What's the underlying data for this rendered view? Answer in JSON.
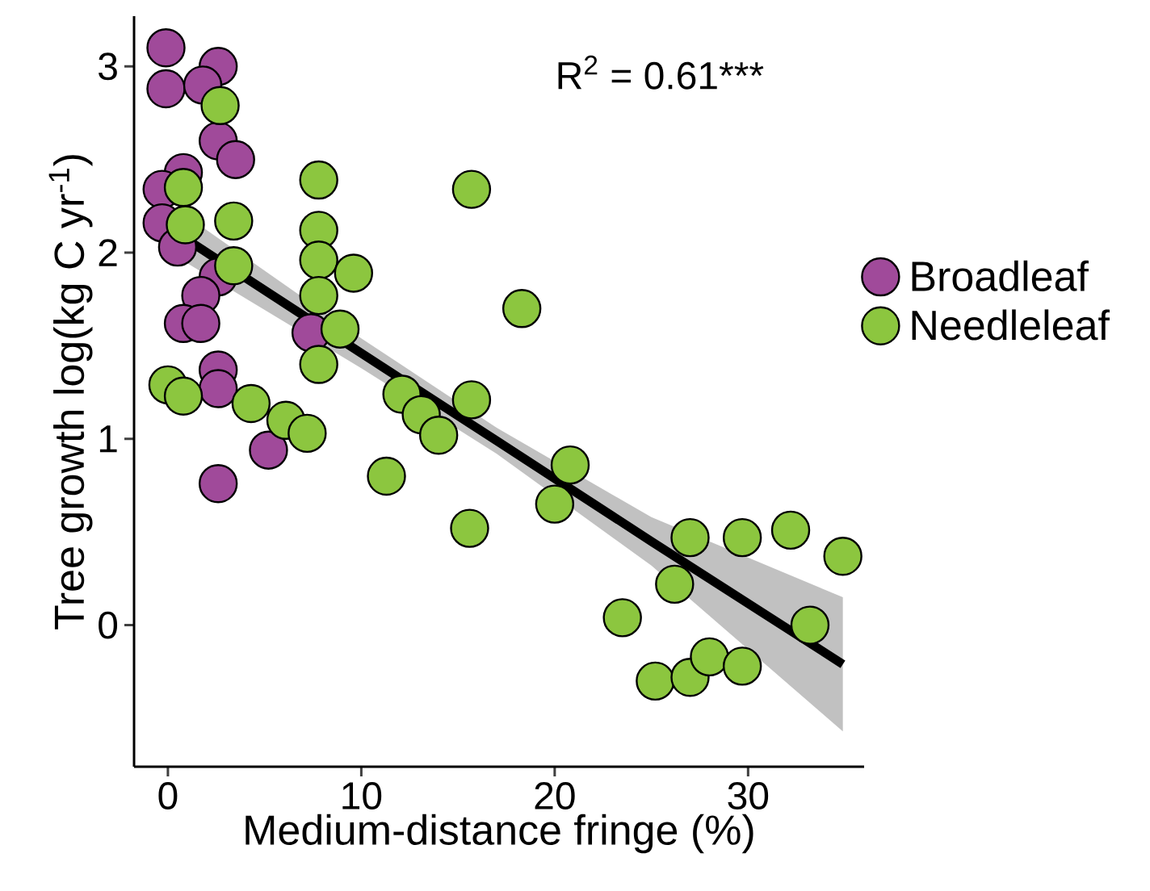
{
  "chart_data": {
    "type": "scatter",
    "xlabel": "Medium-distance fringe (%)",
    "ylabel": "Tree growth log(kg C yr$^{-1}$)",
    "annotations": [
      "R$^{2}$ = 0.61***"
    ],
    "xlim": [
      -1.75,
      36
    ],
    "ylim": [
      -0.76,
      3.27
    ],
    "xticks": [
      0,
      10,
      20,
      30
    ],
    "yticks": [
      0,
      1,
      2,
      3
    ],
    "grid": false,
    "legend": "right",
    "marker": "circle",
    "series": [
      {
        "name": "Broadleaf",
        "color": "#a04a9a",
        "x": [
          -0.1,
          -0.1,
          2.6,
          1.8,
          2.6,
          3.5,
          0.8,
          -0.3,
          -0.3,
          0.5,
          2.6,
          1.7,
          0.8,
          1.7,
          7.4,
          2.6,
          2.6,
          5.2,
          2.6
        ],
        "values": [
          3.1,
          2.88,
          3.0,
          2.9,
          2.6,
          2.5,
          2.43,
          2.34,
          2.16,
          2.03,
          1.87,
          1.77,
          1.62,
          1.62,
          1.57,
          1.37,
          1.27,
          0.94,
          0.76
        ]
      },
      {
        "name": "Needleleaf",
        "color": "#8cc63f",
        "x": [
          2.7,
          0.8,
          0.9,
          3.4,
          3.4,
          7.8,
          7.8,
          7.8,
          9.6,
          7.8,
          8.9,
          7.8,
          15.7,
          18.3,
          0.0,
          0.8,
          4.3,
          6.1,
          7.2,
          12.1,
          13.1,
          14.0,
          15.7,
          11.3,
          15.6,
          20.8,
          20.0,
          23.5,
          27.0,
          26.2,
          29.7,
          32.2,
          34.9,
          33.2,
          25.2,
          27.0,
          28.0,
          29.7
        ],
        "values": [
          2.79,
          2.35,
          2.15,
          2.17,
          1.93,
          2.39,
          2.12,
          1.96,
          1.89,
          1.77,
          1.59,
          1.4,
          2.34,
          1.7,
          1.29,
          1.23,
          1.19,
          1.1,
          1.03,
          1.24,
          1.13,
          1.02,
          1.21,
          0.8,
          0.52,
          0.86,
          0.65,
          0.04,
          0.47,
          0.22,
          0.47,
          0.51,
          0.37,
          0.0,
          -0.3,
          -0.28,
          -0.17,
          -0.22
        ]
      },
      {
        "type": "line",
        "marker": "none",
        "color": "#000000",
        "x": [
          0.1,
          10,
          17,
          25,
          34.9
        ],
        "values": [
          2.13,
          1.46,
          0.99,
          0.45,
          -0.21
        ],
        "lower": [
          2.0,
          1.38,
          0.92,
          0.32,
          -0.57
        ],
        "upper": [
          2.26,
          1.54,
          1.06,
          0.58,
          0.15
        ]
      }
    ]
  }
}
